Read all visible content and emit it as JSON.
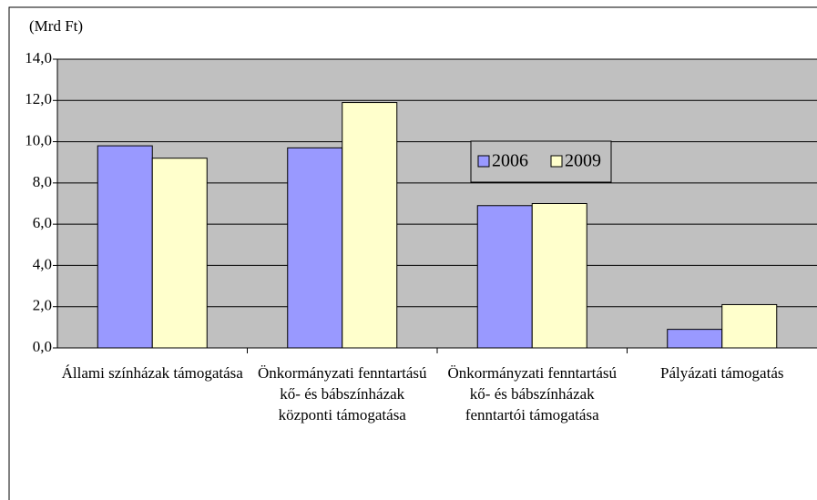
{
  "chart_data": {
    "type": "bar",
    "y_axis_label": "(Mrd Ft)",
    "categories": [
      "Állami színházak támogatása",
      "Önkormányzati fenntartású kő- és bábszínházak központi támogatása",
      "Önkormányzati fenntartású kő- és bábszínházak fenntartói támogatása",
      "Pályázati támogatás"
    ],
    "series": [
      {
        "name": "2006",
        "color": "#9999ff",
        "values": [
          9.8,
          9.7,
          6.9,
          0.9
        ]
      },
      {
        "name": "2009",
        "color": "#ffffcc",
        "values": [
          9.2,
          11.9,
          7.0,
          2.1
        ]
      }
    ],
    "ylim": [
      0,
      14
    ],
    "yticks": [
      {
        "value": 0,
        "label": "0,0"
      },
      {
        "value": 2,
        "label": "2,0"
      },
      {
        "value": 4,
        "label": "4,0"
      },
      {
        "value": 6,
        "label": "6,0"
      },
      {
        "value": 8,
        "label": "8,0"
      },
      {
        "value": 10,
        "label": "10,0"
      },
      {
        "value": 12,
        "label": "12,0"
      },
      {
        "value": 14,
        "label": "14,0"
      }
    ],
    "grid": true,
    "plot_background": "#c0c0c0"
  }
}
